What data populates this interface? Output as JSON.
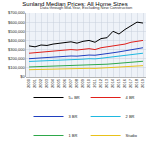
{
  "chart_data": {
    "type": "line",
    "title": "Sunland Median Prices: All Home Sizes",
    "subtitle": "Data through Mid-Year, Excluding New Construction",
    "categories": [
      "2000",
      "2001",
      "2002",
      "2003",
      "2004",
      "2005",
      "2006",
      "2007",
      "2008",
      "2009",
      "2010",
      "2011",
      "2012",
      "2013",
      "2014",
      "2015",
      "2016",
      "2017",
      "2018",
      "2019"
    ],
    "series": [
      {
        "name": "5+ BR",
        "color": "#000000",
        "values": [
          340000,
          330000,
          350000,
          345000,
          360000,
          370000,
          380000,
          385000,
          370000,
          390000,
          400000,
          380000,
          420000,
          430000,
          500000,
          470000,
          520000,
          560000,
          600000,
          590000
        ]
      },
      {
        "name": "4 BR",
        "color": "#e0201b",
        "values": [
          260000,
          265000,
          270000,
          275000,
          280000,
          285000,
          290000,
          300000,
          295000,
          305000,
          310000,
          300000,
          320000,
          330000,
          340000,
          350000,
          360000,
          380000,
          390000,
          400000
        ]
      },
      {
        "name": "3 BR",
        "color": "#1f3fbf",
        "values": [
          200000,
          205000,
          210000,
          212000,
          215000,
          220000,
          225000,
          230000,
          228000,
          235000,
          240000,
          238000,
          245000,
          255000,
          265000,
          275000,
          285000,
          300000,
          310000,
          320000
        ]
      },
      {
        "name": "2 BR",
        "color": "#1fb8e0",
        "values": [
          170000,
          172000,
          175000,
          178000,
          180000,
          185000,
          188000,
          190000,
          188000,
          195000,
          200000,
          198000,
          205000,
          212000,
          220000,
          228000,
          235000,
          245000,
          255000,
          260000
        ]
      },
      {
        "name": "1 BR",
        "color": "#2ea84a",
        "values": [
          110000,
          112000,
          115000,
          118000,
          120000,
          122000,
          125000,
          128000,
          126000,
          130000,
          132000,
          130000,
          135000,
          140000,
          145000,
          150000,
          155000,
          162000,
          168000,
          172000
        ]
      },
      {
        "name": "Studio",
        "color": "#e8c21a",
        "values": [
          80000,
          82000,
          84000,
          85000,
          86000,
          88000,
          90000,
          92000,
          91000,
          93000,
          95000,
          94000,
          97000,
          100000,
          104000,
          108000,
          112000,
          116000,
          120000,
          124000
        ]
      }
    ],
    "ylim": [
      0,
      700000
    ],
    "yticks": [
      {
        "value": 0,
        "label": "$0"
      },
      {
        "value": 100000,
        "label": "$100,000"
      },
      {
        "value": 200000,
        "label": "$200,000"
      },
      {
        "value": 300000,
        "label": "$300,000"
      },
      {
        "value": 400000,
        "label": "$400,000"
      },
      {
        "value": 500000,
        "label": "$500,000"
      },
      {
        "value": 600000,
        "label": "$600,000"
      },
      {
        "value": 700000,
        "label": "$700,000"
      }
    ],
    "grid": true,
    "legend": "bottom"
  }
}
